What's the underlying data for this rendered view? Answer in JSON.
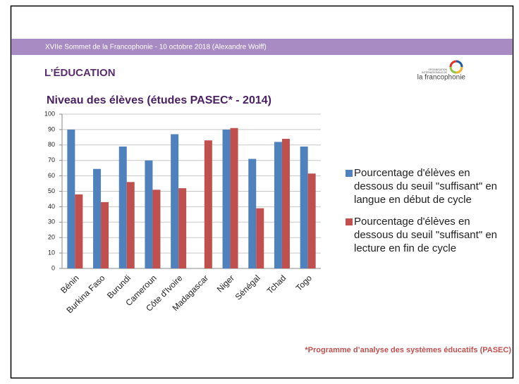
{
  "header": {
    "text": "XVIIe Sommet de la Francophonie - 10 octobre 2018 (Alexandre Wolff)"
  },
  "section": {
    "title": "L’ÉDUCATION"
  },
  "logo": {
    "line1": "ORGANISATION",
    "line2": "INTERNATIONALE DE",
    "name": "la francophonie"
  },
  "footnote": "*Programme d’analyse des systèmes éducatifs (PASEC)",
  "chart_data": {
    "type": "bar",
    "title": "Niveau des élèves (études PASEC* - 2014)",
    "categories": [
      "Bénin",
      "Burkina Faso",
      "Burundi",
      "Cameroun",
      "Côte d'Ivoire",
      "Madagascar",
      "Niger",
      "Sénégal",
      "Tchad",
      "Togo"
    ],
    "series": [
      {
        "name": "Pourcentage d'élèves en dessous du seuil \"suffisant\" en langue en début de cycle",
        "color": "#4f81bd",
        "values": [
          90,
          64.5,
          79,
          70,
          87,
          null,
          90,
          71,
          82,
          79
        ]
      },
      {
        "name": "Pourcentage d'élèves en dessous du seuil \"suffisant\" en lecture en fin de cycle",
        "color": "#c0504d",
        "values": [
          48,
          43,
          56,
          51,
          52,
          83,
          91,
          39,
          84,
          61.5
        ]
      }
    ],
    "ylim": [
      0,
      100
    ],
    "yticks": [
      0,
      10,
      20,
      30,
      40,
      50,
      60,
      70,
      80,
      90,
      100
    ],
    "grid": true,
    "legend": "right"
  }
}
